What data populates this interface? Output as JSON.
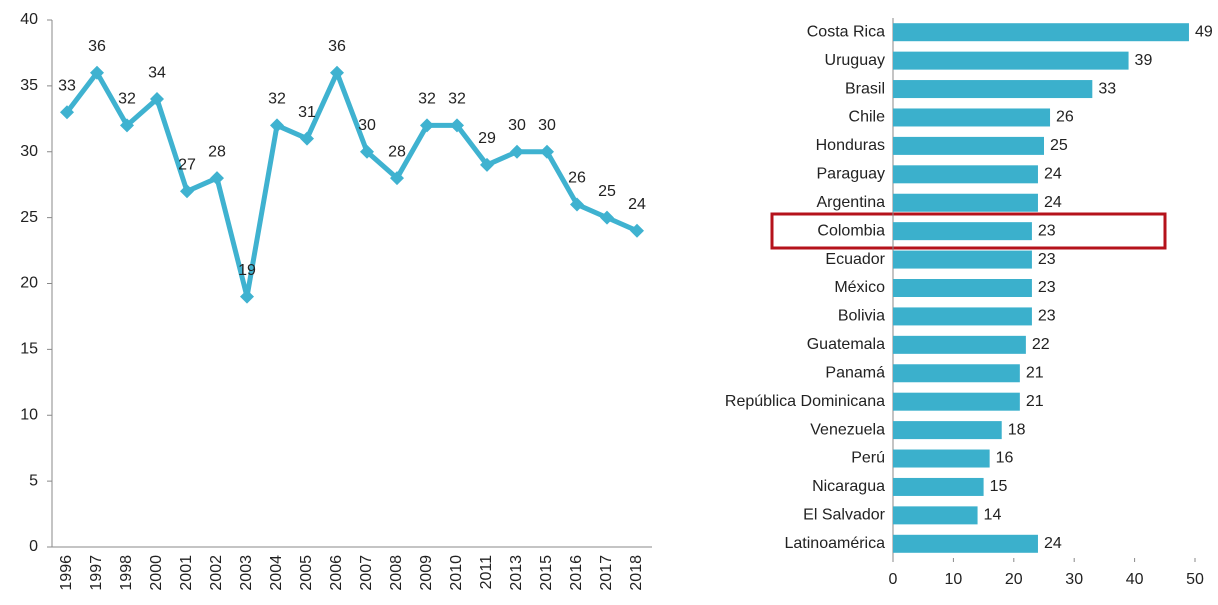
{
  "chart_data": [
    {
      "type": "line",
      "categories": [
        "1996",
        "1997",
        "1998",
        "2000",
        "2001",
        "2002",
        "2003",
        "2004",
        "2005",
        "2006",
        "2007",
        "2008",
        "2009",
        "2010",
        "2011",
        "2013",
        "2015",
        "2016",
        "2017",
        "2018"
      ],
      "values": [
        33,
        36,
        32,
        34,
        27,
        28,
        19,
        32,
        31,
        36,
        30,
        28,
        32,
        32,
        29,
        30,
        30,
        26,
        25,
        24
      ],
      "color": "#3fb2d0",
      "ylim": [
        0,
        40
      ],
      "yticks": [
        0,
        5,
        10,
        15,
        20,
        25,
        30,
        35,
        40
      ]
    },
    {
      "type": "barh",
      "categories": [
        "Costa Rica",
        "Uruguay",
        "Brasil",
        "Chile",
        "Honduras",
        "Paraguay",
        "Argentina",
        "Colombia",
        "Ecuador",
        "México",
        "Bolivia",
        "Guatemala",
        "Panamá",
        "República Dominicana",
        "Venezuela",
        "Perú",
        "Nicaragua",
        "El Salvador",
        "Latinoamérica"
      ],
      "values": [
        49,
        39,
        33,
        26,
        25,
        24,
        24,
        23,
        23,
        23,
        23,
        22,
        21,
        21,
        18,
        16,
        15,
        14,
        24
      ],
      "color": "#3bb0cc",
      "xlim": [
        0,
        50
      ],
      "xticks": [
        0,
        10,
        20,
        30,
        40,
        50
      ]
    }
  ]
}
